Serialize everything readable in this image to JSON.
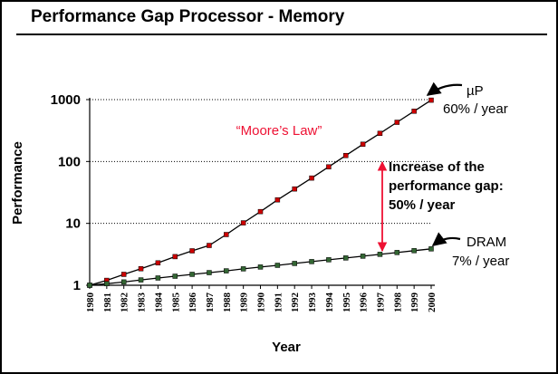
{
  "chart_data": {
    "type": "line",
    "title": "Performance Gap Processor - Memory",
    "xlabel": "Year",
    "ylabel": "Performance",
    "yscale": "log",
    "ylim": [
      1,
      1000
    ],
    "yticks": [
      "1",
      "10",
      "100",
      "1000"
    ],
    "x": [
      1980,
      1981,
      1982,
      1983,
      1984,
      1985,
      1986,
      1987,
      1988,
      1989,
      1990,
      1991,
      1992,
      1993,
      1994,
      1995,
      1996,
      1997,
      1998,
      1999,
      2000
    ],
    "series": [
      {
        "name": "µP",
        "color": "#cc0000",
        "values": [
          1,
          1.2,
          1.5,
          1.85,
          2.3,
          2.9,
          3.6,
          4.4,
          6.6,
          10.2,
          15.5,
          24,
          36,
          54,
          82,
          125,
          190,
          285,
          430,
          650,
          980
        ]
      },
      {
        "name": "DRAM",
        "color": "#336633",
        "values": [
          1,
          1.06,
          1.13,
          1.22,
          1.31,
          1.4,
          1.5,
          1.6,
          1.71,
          1.84,
          1.97,
          2.1,
          2.25,
          2.41,
          2.58,
          2.76,
          2.95,
          3.16,
          3.38,
          3.62,
          3.87
        ]
      }
    ],
    "grid": "dotted at major y ticks",
    "annotations": {
      "moores_law": "“Moore’s Law”",
      "up_label": "µP",
      "up_rate": "60% / year",
      "dram_label": "DRAM",
      "dram_rate": "7% / year",
      "gap_line1": "Increase of the",
      "gap_line2": "performance gap:",
      "gap_line3": "50% / year"
    },
    "colors": {
      "moores_law": "#ee1133",
      "gap_arrow": "#ee1133",
      "axes": "#000000"
    }
  }
}
